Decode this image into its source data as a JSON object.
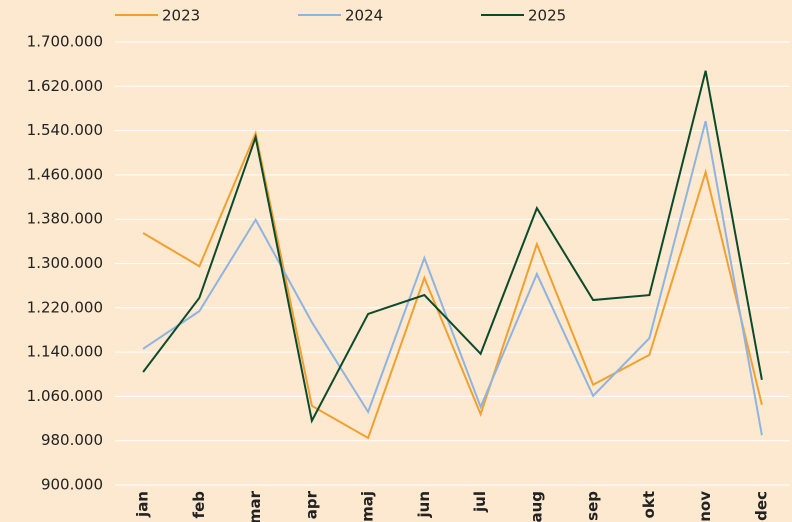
{
  "chart_data": {
    "type": "line",
    "categories": [
      "jan",
      "feb",
      "mar",
      "apr",
      "maj",
      "jun",
      "jul",
      "aug",
      "sep",
      "okt",
      "nov",
      "dec"
    ],
    "series": [
      {
        "name": "2023",
        "color": "#f0a030",
        "values": [
          1355000,
          1295000,
          1535000,
          1043000,
          985000,
          1274000,
          1028000,
          1335000,
          1081000,
          1135000,
          1465000,
          1045000
        ]
      },
      {
        "name": "2024",
        "color": "#8fb4e0",
        "values": [
          1146000,
          1214000,
          1379000,
          1194000,
          1032000,
          1310000,
          1041000,
          1281000,
          1061000,
          1165000,
          1557000,
          990000
        ]
      },
      {
        "name": "2025",
        "color": "#0b4a2a",
        "values": [
          1104000,
          1238000,
          1528000,
          1016000,
          1209000,
          1243000,
          1137000,
          1400000,
          1234000,
          1243000,
          1648000,
          1090000
        ]
      }
    ],
    "ylim": [
      900000,
      1700000
    ],
    "yticks": [
      {
        "value": 900000,
        "label": "900.000"
      },
      {
        "value": 980000,
        "label": "980.000"
      },
      {
        "value": 1060000,
        "label": "1.060.000"
      },
      {
        "value": 1140000,
        "label": "1.140.000"
      },
      {
        "value": 1220000,
        "label": "1.220.000"
      },
      {
        "value": 1300000,
        "label": "1.300.000"
      },
      {
        "value": 1380000,
        "label": "1.380.000"
      },
      {
        "value": 1460000,
        "label": "1.460.000"
      },
      {
        "value": 1540000,
        "label": "1.540.000"
      },
      {
        "value": 1620000,
        "label": "1.620.000"
      },
      {
        "value": 1700000,
        "label": "1.700.000"
      }
    ],
    "grid": true,
    "legend": "top"
  }
}
